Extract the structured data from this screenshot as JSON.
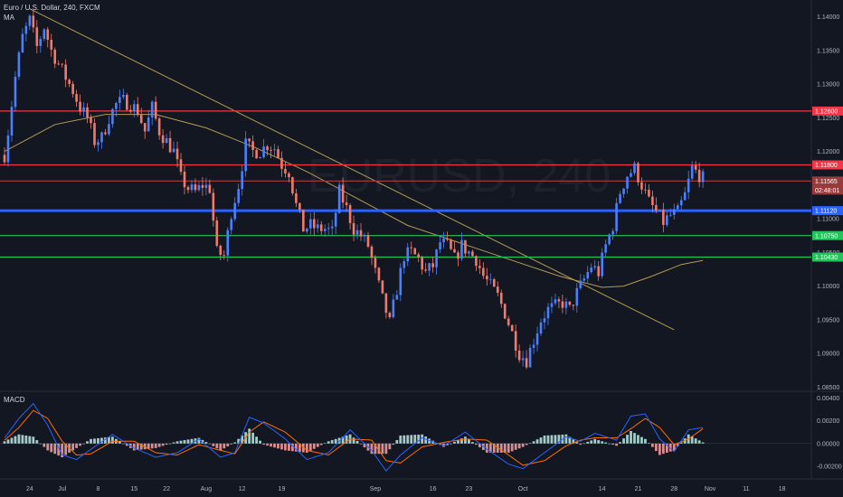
{
  "header": {
    "title": "Euro / U.S. Dollar, 240, FXCM",
    "indicator": "MA"
  },
  "watermark": "EURUSD, 240",
  "macd_label": "MACD",
  "colors": {
    "background": "#131722",
    "up": "#4a80ff",
    "down": "#f27a6a",
    "ma": "#b59a52",
    "resistance": "#f23645",
    "support": "#23c45b",
    "level": "#2962ff",
    "price_line": "#9b3a3a",
    "macd_line": "#2962ff",
    "signal_line": "#ff6d00",
    "hist_up": "#b2dfdb",
    "hist_down": "#ef9a9a"
  },
  "chart_data": [
    {
      "type": "candlestick",
      "title": "Euro / U.S. Dollar, 240, FXCM",
      "x_ticks": [
        "24",
        "Jul",
        "8",
        "15",
        "22",
        "Aug",
        "12",
        "19",
        "Sep",
        "16",
        "23",
        "Oct",
        "14",
        "21",
        "28",
        "Nov",
        "11",
        "18"
      ],
      "y_ticks": [
        "1.14000",
        "1.13500",
        "1.13000",
        "1.12500",
        "1.12000",
        "1.11500",
        "1.11000",
        "1.10500",
        "1.10000",
        "1.09500",
        "1.09000",
        "1.08500"
      ],
      "ylim": [
        1.0845,
        1.1425
      ],
      "close_path": [
        [
          0,
          1.1195
        ],
        [
          1,
          1.123
        ],
        [
          3,
          1.131
        ],
        [
          5,
          1.137
        ],
        [
          7,
          1.1395
        ],
        [
          9,
          1.1355
        ],
        [
          11,
          1.1385
        ],
        [
          13,
          1.135
        ],
        [
          15,
          1.133
        ],
        [
          17,
          1.131
        ],
        [
          19,
          1.129
        ],
        [
          21,
          1.1265
        ],
        [
          23,
          1.125
        ],
        [
          25,
          1.1215
        ],
        [
          27,
          1.122
        ],
        [
          29,
          1.125
        ],
        [
          31,
          1.127
        ],
        [
          33,
          1.1275
        ],
        [
          35,
          1.127
        ],
        [
          37,
          1.126
        ],
        [
          39,
          1.123
        ],
        [
          41,
          1.1265
        ],
        [
          43,
          1.123
        ],
        [
          45,
          1.1215
        ],
        [
          47,
          1.12
        ],
        [
          49,
          1.116
        ],
        [
          51,
          1.1145
        ],
        [
          53,
          1.114
        ],
        [
          55,
          1.115
        ],
        [
          57,
          1.1145
        ],
        [
          59,
          1.105
        ],
        [
          61,
          1.1045
        ],
        [
          63,
          1.111
        ],
        [
          65,
          1.115
        ],
        [
          67,
          1.121
        ],
        [
          69,
          1.12
        ],
        [
          71,
          1.12
        ],
        [
          73,
          1.121
        ],
        [
          75,
          1.1205
        ],
        [
          77,
          1.118
        ],
        [
          79,
          1.117
        ],
        [
          81,
          1.112
        ],
        [
          83,
          1.1085
        ],
        [
          85,
          1.109
        ],
        [
          87,
          1.1085
        ],
        [
          89,
          1.1085
        ],
        [
          91,
          1.108
        ],
        [
          93,
          1.114
        ],
        [
          95,
          1.1115
        ],
        [
          97,
          1.1085
        ],
        [
          99,
          1.1075
        ],
        [
          101,
          1.106
        ],
        [
          103,
          1.102
        ],
        [
          105,
          1.098
        ],
        [
          107,
          1.0945
        ],
        [
          109,
          1.0995
        ],
        [
          111,
          1.1045
        ],
        [
          113,
          1.105
        ],
        [
          115,
          1.104
        ],
        [
          117,
          1.102
        ],
        [
          119,
          1.103
        ],
        [
          121,
          1.1065
        ],
        [
          123,
          1.106
        ],
        [
          125,
          1.104
        ],
        [
          127,
          1.106
        ],
        [
          129,
          1.105
        ],
        [
          131,
          1.104
        ],
        [
          133,
          1.1015
        ],
        [
          135,
          1.1
        ],
        [
          137,
          1.0985
        ],
        [
          139,
          1.096
        ],
        [
          141,
          1.093
        ],
        [
          143,
          1.09
        ],
        [
          145,
          1.089
        ],
        [
          147,
          1.092
        ],
        [
          149,
          1.095
        ],
        [
          151,
          1.0965
        ],
        [
          153,
          1.097
        ],
        [
          155,
          1.0975
        ],
        [
          157,
          1.0965
        ],
        [
          159,
          1.099
        ],
        [
          161,
          1.101
        ],
        [
          163,
          1.103
        ],
        [
          165,
          1.102
        ],
        [
          167,
          1.106
        ],
        [
          169,
          1.109
        ],
        [
          171,
          1.114
        ],
        [
          173,
          1.1165
        ],
        [
          175,
          1.1175
        ],
        [
          177,
          1.115
        ],
        [
          179,
          1.1125
        ],
        [
          181,
          1.111
        ],
        [
          183,
          1.1095
        ],
        [
          185,
          1.1105
        ],
        [
          187,
          1.111
        ],
        [
          189,
          1.1135
        ],
        [
          191,
          1.1175
        ],
        [
          193,
          1.1165
        ],
        [
          194,
          1.116
        ]
      ],
      "ma": [
        [
          0,
          1.12
        ],
        [
          14,
          1.124
        ],
        [
          28,
          1.1255
        ],
        [
          42,
          1.1255
        ],
        [
          56,
          1.1235
        ],
        [
          70,
          1.1205
        ],
        [
          84,
          1.117
        ],
        [
          98,
          1.113
        ],
        [
          112,
          1.109
        ],
        [
          126,
          1.1065
        ],
        [
          140,
          1.104
        ],
        [
          154,
          1.1015
        ],
        [
          166,
          1.0998
        ],
        [
          172,
          1.1
        ],
        [
          180,
          1.1015
        ],
        [
          188,
          1.1032
        ],
        [
          194,
          1.1038
        ]
      ],
      "trendline": [
        [
          7,
          1.1412
        ],
        [
          186,
          1.0935
        ]
      ],
      "levels": [
        {
          "price": 1.126,
          "label": "1.12600",
          "kind": "resistance"
        },
        {
          "price": 1.118,
          "label": "1.11800",
          "kind": "resistance"
        },
        {
          "price": 1.1156,
          "label": "1.11565",
          "kind": "price",
          "countdown": "02:48:01"
        },
        {
          "price": 1.1112,
          "label": "1.11120",
          "kind": "level"
        },
        {
          "price": 1.1075,
          "label": "1.10750",
          "kind": "support"
        },
        {
          "price": 1.1043,
          "label": "1.10430",
          "kind": "support"
        }
      ]
    },
    {
      "type": "macd",
      "title": "MACD",
      "y_ticks": [
        "0.00400",
        "0.00200",
        "0.00000",
        "-0.00200"
      ],
      "ylim": [
        -0.0031,
        0.0045
      ],
      "series": [
        {
          "name": "MACD",
          "points": [
            [
              0,
              0.0005
            ],
            [
              4,
              0.0022
            ],
            [
              8,
              0.0035
            ],
            [
              12,
              0.0016
            ],
            [
              16,
              -0.001
            ],
            [
              20,
              -0.0014
            ],
            [
              24,
              -0.0005
            ],
            [
              30,
              0.0008
            ],
            [
              36,
              -0.0004
            ],
            [
              42,
              -0.0012
            ],
            [
              48,
              -0.0008
            ],
            [
              54,
              0.0004
            ],
            [
              60,
              -0.0012
            ],
            [
              64,
              -0.0008
            ],
            [
              68,
              0.0023
            ],
            [
              72,
              0.0018
            ],
            [
              78,
              0.0004
            ],
            [
              84,
              -0.0014
            ],
            [
              90,
              -0.0008
            ],
            [
              96,
              0.0012
            ],
            [
              102,
              -0.0006
            ],
            [
              106,
              -0.0024
            ],
            [
              110,
              -0.001
            ],
            [
              116,
              0.0005
            ],
            [
              122,
              -0.0002
            ],
            [
              128,
              0.001
            ],
            [
              134,
              -0.0005
            ],
            [
              140,
              -0.0018
            ],
            [
              144,
              -0.0022
            ],
            [
              150,
              -0.0008
            ],
            [
              156,
              0.0006
            ],
            [
              160,
              0.0002
            ],
            [
              164,
              0.0009
            ],
            [
              170,
              0.0003
            ],
            [
              174,
              0.0024
            ],
            [
              178,
              0.0026
            ],
            [
              182,
              0.0004
            ],
            [
              186,
              -0.0007
            ],
            [
              190,
              0.0012
            ],
            [
              194,
              0.0014
            ]
          ]
        },
        {
          "name": "Signal",
          "points": [
            [
              0,
              0.0003
            ],
            [
              4,
              0.0014
            ],
            [
              8,
              0.0029
            ],
            [
              12,
              0.0022
            ],
            [
              16,
              0.0002
            ],
            [
              20,
              -0.001
            ],
            [
              24,
              -0.0009
            ],
            [
              30,
              0.0002
            ],
            [
              36,
              0.0002
            ],
            [
              42,
              -0.0008
            ],
            [
              48,
              -0.001
            ],
            [
              54,
              -0.0001
            ],
            [
              60,
              -0.0006
            ],
            [
              64,
              -0.0009
            ],
            [
              68,
              0.001
            ],
            [
              72,
              0.0019
            ],
            [
              78,
              0.001
            ],
            [
              84,
              -0.0006
            ],
            [
              90,
              -0.001
            ],
            [
              96,
              0.0004
            ],
            [
              102,
              0.0003
            ],
            [
              106,
              -0.0015
            ],
            [
              110,
              -0.0017
            ],
            [
              116,
              -0.0003
            ],
            [
              122,
              0.0001
            ],
            [
              128,
              0.0004
            ],
            [
              134,
              0.0003
            ],
            [
              140,
              -0.001
            ],
            [
              144,
              -0.0019
            ],
            [
              150,
              -0.0015
            ],
            [
              156,
              -0.0002
            ],
            [
              160,
              0.0003
            ],
            [
              164,
              0.0005
            ],
            [
              170,
              0.0005
            ],
            [
              174,
              0.0013
            ],
            [
              178,
              0.0022
            ],
            [
              182,
              0.0014
            ],
            [
              186,
              -0.0001
            ],
            [
              190,
              0.0004
            ],
            [
              194,
              0.0013
            ]
          ]
        }
      ]
    }
  ]
}
